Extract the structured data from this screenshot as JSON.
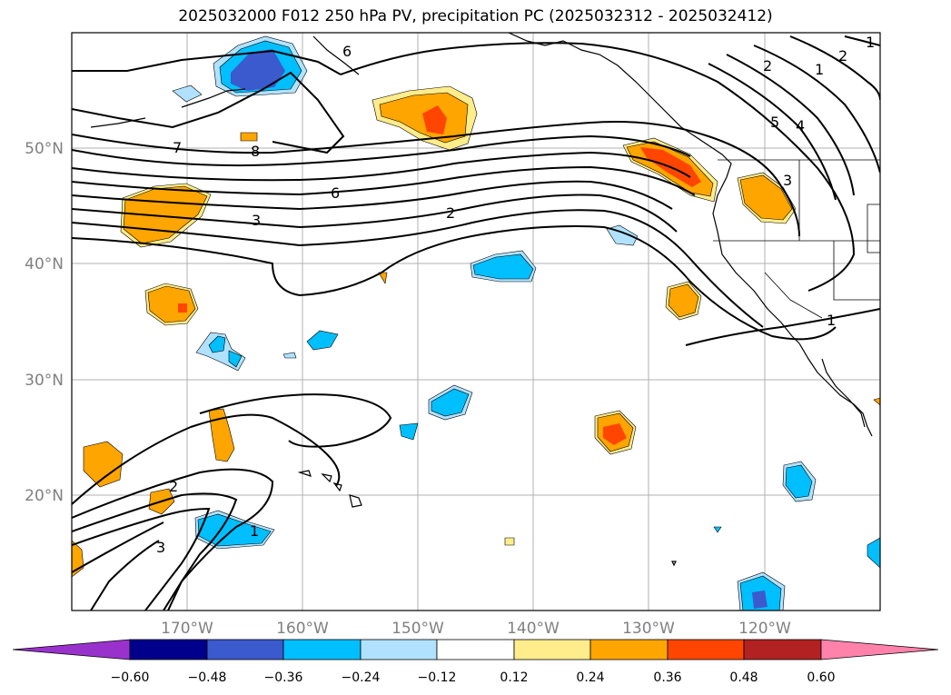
{
  "title": "2025032000 F012 250 hPa PV, precipitation PC (2025032312 - 2025032412)",
  "map": {
    "lon_labels": [
      "170°W",
      "160°W",
      "150°W",
      "140°W",
      "130°W",
      "120°W"
    ],
    "lat_labels": [
      "50°N",
      "40°N",
      "30°N",
      "20°N"
    ],
    "contour_labels": [
      "6",
      "7",
      "8",
      "6",
      "3",
      "2",
      "2",
      "1",
      "2",
      "1",
      "5",
      "4",
      "3",
      "1",
      "2",
      "3",
      "1"
    ]
  },
  "colorbar": {
    "ticks": [
      "−0.60",
      "−0.48",
      "−0.36",
      "−0.24",
      "−0.12",
      "0.12",
      "0.24",
      "0.36",
      "0.48",
      "0.60"
    ],
    "colors": [
      "#9932CC",
      "#00008B",
      "#3A5ACD",
      "#00BFFF",
      "#B0E2FF",
      "#FFFFFF",
      "#FFEC8B",
      "#FFA500",
      "#FF4500",
      "#B22222",
      "#FF82AB"
    ]
  }
}
